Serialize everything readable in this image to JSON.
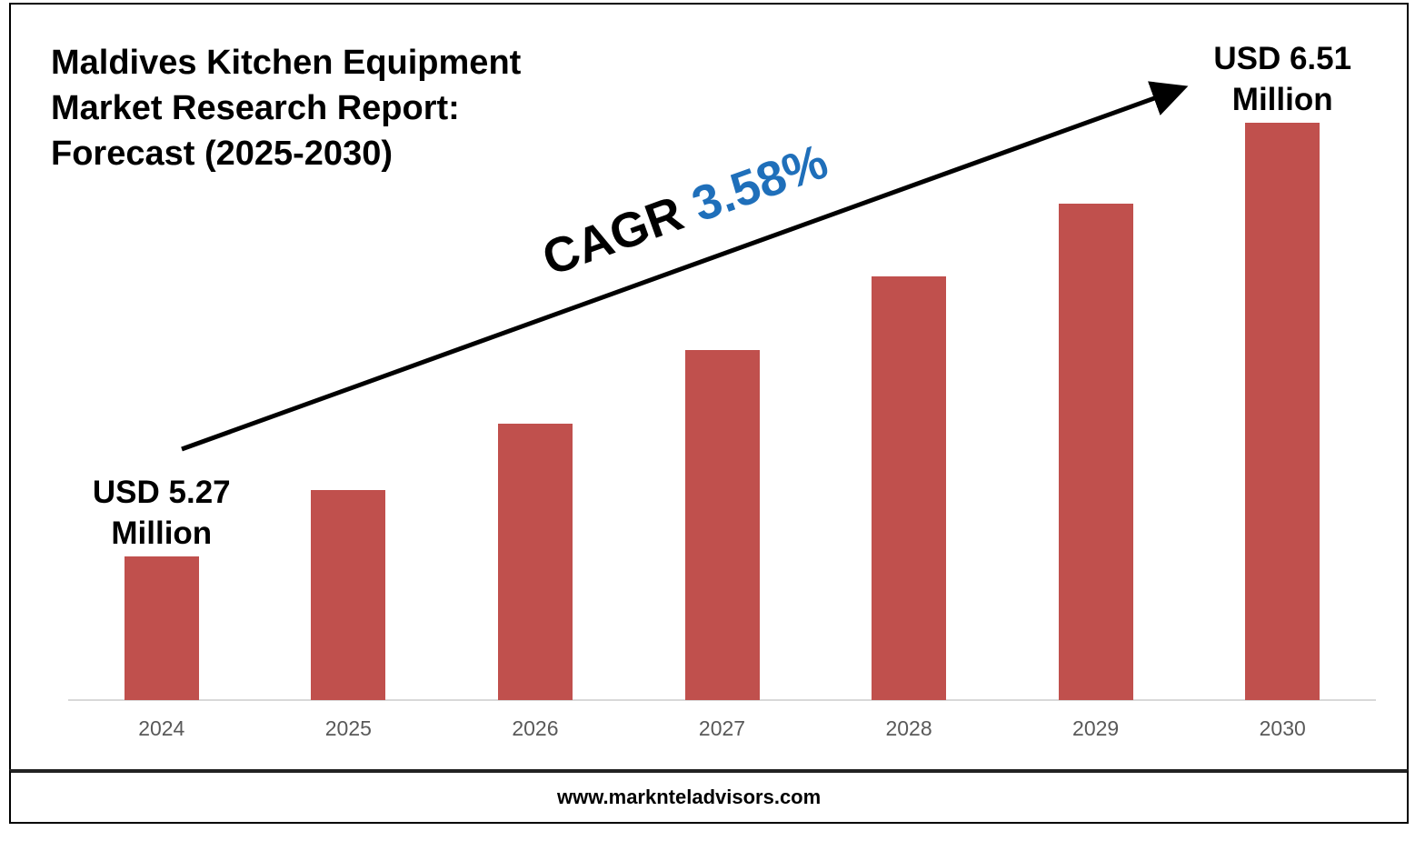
{
  "chart_data": {
    "type": "bar",
    "title": "Maldives Kitchen Equipment Market Research Report: Forecast (2025-2030)",
    "categories": [
      "2024",
      "2025",
      "2026",
      "2027",
      "2028",
      "2029",
      "2030"
    ],
    "values": [
      5.27,
      5.46,
      5.65,
      5.86,
      6.07,
      6.28,
      6.51
    ],
    "value_labels": [
      "USD 5.27 Million",
      null,
      null,
      null,
      null,
      null,
      "USD 6.51 Million"
    ],
    "color": "#c0504d",
    "ylim": [
      4.86,
      6.51
    ],
    "annotation_label": "CAGR",
    "annotation_value": "3.58%",
    "source": "www.marknteladvisors.com"
  }
}
